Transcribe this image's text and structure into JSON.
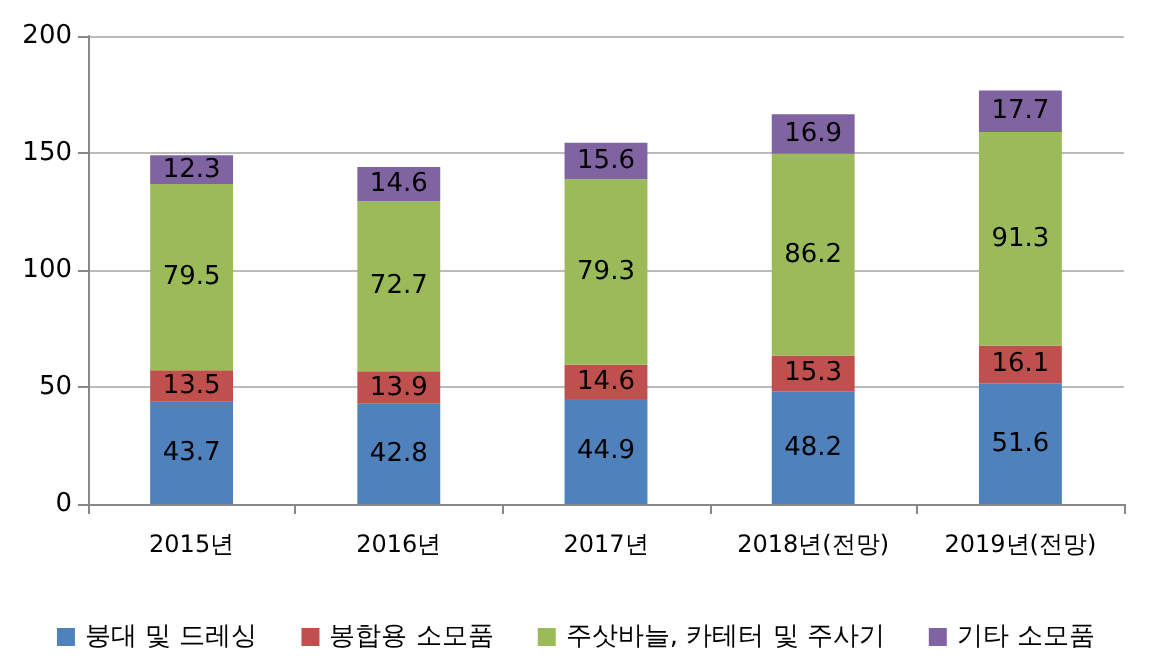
{
  "chart_data": {
    "type": "bar",
    "stacked": true,
    "categories": [
      "2015년",
      "2016년",
      "2017년",
      "2018년(전망)",
      "2019년(전망)"
    ],
    "series": [
      {
        "name": "붕대 및 드레싱",
        "color": "#4f81bd",
        "values": [
          43.7,
          42.8,
          44.9,
          48.2,
          51.6
        ]
      },
      {
        "name": "봉합용 소모품",
        "color": "#c0504d",
        "values": [
          13.5,
          13.9,
          14.6,
          15.3,
          16.1
        ]
      },
      {
        "name": "주삿바늘, 카테터 및 주사기",
        "color": "#9bbb59",
        "values": [
          79.5,
          72.7,
          79.3,
          86.2,
          91.3
        ]
      },
      {
        "name": "기타 소모품",
        "color": "#8064a2",
        "values": [
          12.3,
          14.6,
          15.6,
          16.9,
          17.7
        ]
      }
    ],
    "ylim": [
      0,
      200
    ],
    "yticks": [
      0,
      50,
      100,
      150,
      200
    ],
    "grid": "y",
    "legend": "bottom",
    "data_labels": true
  }
}
